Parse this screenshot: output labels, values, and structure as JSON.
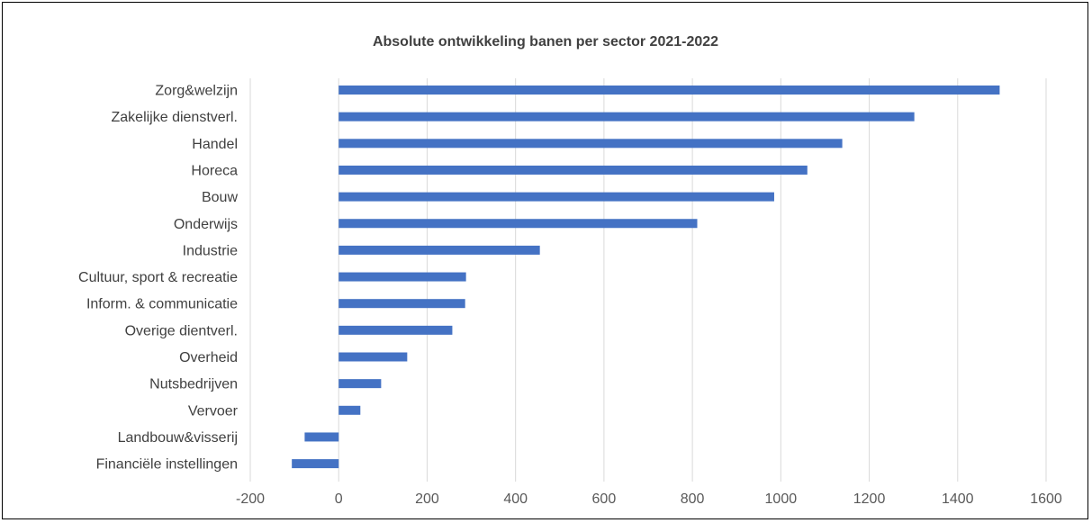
{
  "chart_data": {
    "type": "bar",
    "orientation": "horizontal",
    "title": "Absolute ontwikkeling banen per sector 2021-2022",
    "xlabel": "",
    "ylabel": "",
    "xlim": [
      -200,
      1600
    ],
    "x_ticks": [
      -200,
      0,
      200,
      400,
      600,
      800,
      1000,
      1200,
      1400,
      1600
    ],
    "grid": true,
    "legend": "none",
    "categories": [
      "Zorg&welzijn",
      "Zakelijke dienstverl.",
      "Handel",
      "Horeca",
      "Bouw",
      "Onderwijs",
      "Industrie",
      "Cultuur, sport & recreatie",
      "Inform. & communicatie",
      "Overige dientverl.",
      "Overheid",
      "Nutsbedrijven",
      "Vervoer",
      "Landbouw&visserij",
      "Financiële instellingen"
    ],
    "values": [
      1495,
      1302,
      1139,
      1060,
      985,
      811,
      455,
      288,
      286,
      257,
      155,
      96,
      49,
      -77,
      -106
    ],
    "colors": {
      "bar": "#4472C4",
      "grid": "#D9D9D9",
      "text": "#404040",
      "border": "#000000"
    }
  }
}
